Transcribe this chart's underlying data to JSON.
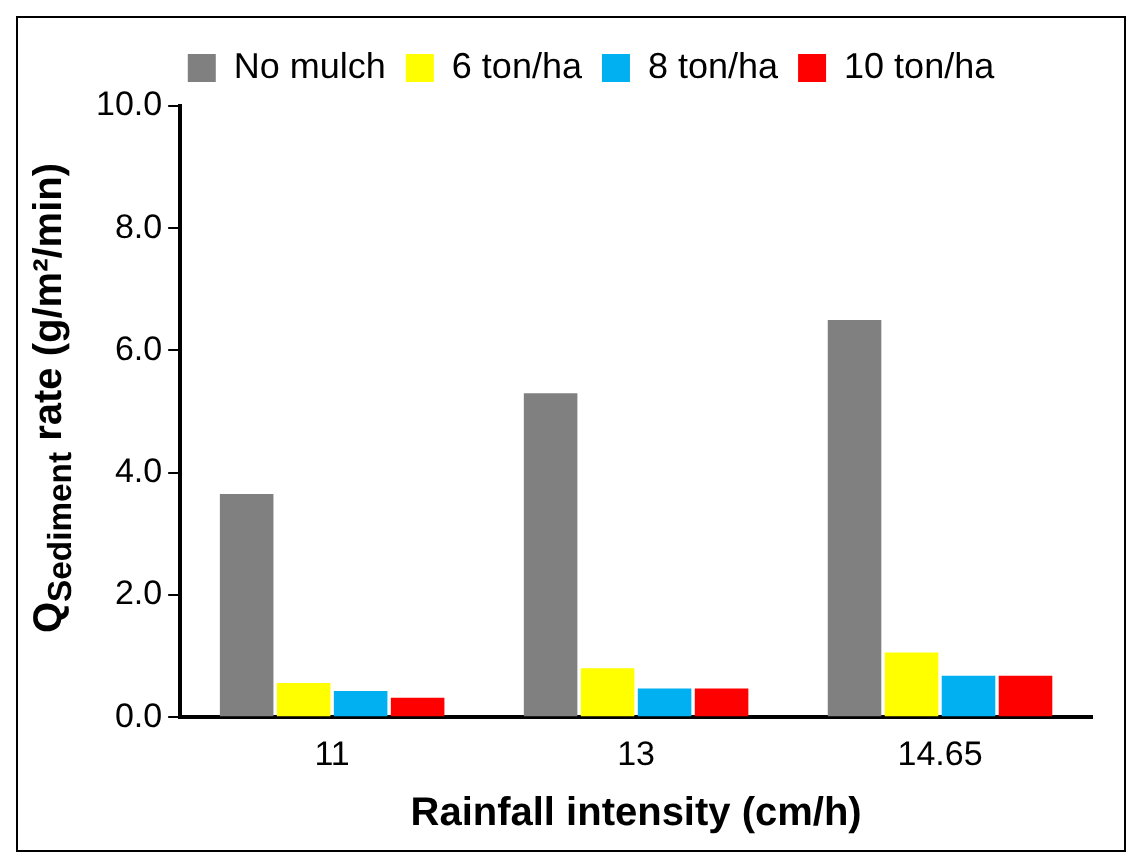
{
  "chart_data": {
    "type": "bar",
    "xlabel": "Rainfall intensity (cm/h)",
    "ylabel": "Q$_{Sediment}$ rate (g/m²/min)",
    "categories": [
      "11",
      "13",
      "14.65"
    ],
    "series": [
      {
        "name": "No mulch",
        "color": "#808080",
        "values": [
          3.65,
          5.3,
          6.5
        ]
      },
      {
        "name": "6 ton/ha",
        "color": "#ffff00",
        "values": [
          0.56,
          0.8,
          1.06
        ]
      },
      {
        "name": "8 ton/ha",
        "color": "#00b0f0",
        "values": [
          0.43,
          0.47,
          0.68
        ]
      },
      {
        "name": "10 ton/ha",
        "color": "#ff0000",
        "values": [
          0.32,
          0.47,
          0.68
        ]
      }
    ],
    "ylim": [
      0,
      10
    ],
    "yticks": [
      {
        "value": 0,
        "label": "0.0"
      },
      {
        "value": 2,
        "label": "2.0"
      },
      {
        "value": 4,
        "label": "4.0"
      },
      {
        "value": 6,
        "label": "6.0"
      },
      {
        "value": 8,
        "label": "8.0"
      },
      {
        "value": 10,
        "label": "10.0"
      }
    ],
    "grid": false,
    "legend": "top"
  }
}
